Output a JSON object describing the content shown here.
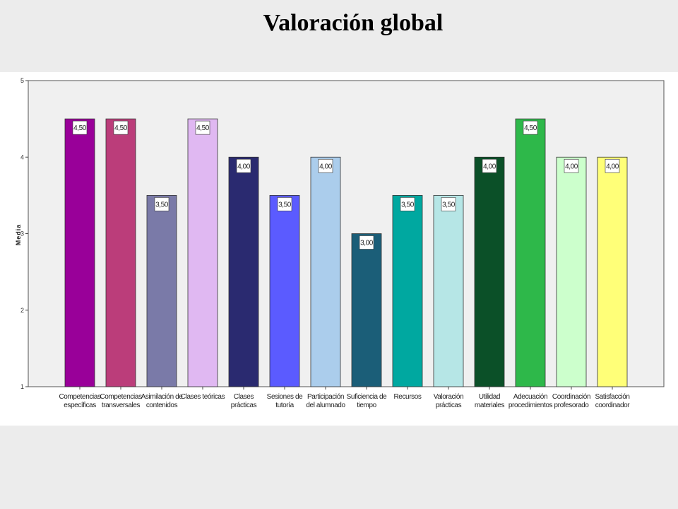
{
  "slide": {
    "title": "Valoración global"
  },
  "chart_data": {
    "type": "bar",
    "ylabel": "Media",
    "ylim": [
      1,
      5
    ],
    "yticks": [
      "1",
      "2",
      "3",
      "4",
      "5"
    ],
    "categories": [
      [
        "Competencias",
        "específicas"
      ],
      [
        "Competencias",
        "transversales"
      ],
      [
        "Asimilación de",
        "contenidos"
      ],
      [
        "Clases teóricas"
      ],
      [
        "Clases",
        "prácticas"
      ],
      [
        "Sesiones de",
        "tutoría"
      ],
      [
        "Participación",
        "del alumnado"
      ],
      [
        "Suficiencia de",
        "tiempo"
      ],
      [
        "Recursos"
      ],
      [
        "Valoración",
        "prácticas"
      ],
      [
        "Utilidad",
        "materiales"
      ],
      [
        "Adecuación",
        "procedimientos"
      ],
      [
        "Coordinación",
        "profesorado"
      ],
      [
        "Satisfacción",
        "coordinador"
      ]
    ],
    "values": [
      4.5,
      4.5,
      3.5,
      4.5,
      4.0,
      3.5,
      4.0,
      3.0,
      3.5,
      3.5,
      4.0,
      4.5,
      4.0,
      4.0
    ],
    "data_labels": [
      "4,50",
      "4,50",
      "3,50",
      "4,50",
      "4,00",
      "3,50",
      "4,00",
      "3,00",
      "3,50",
      "3,50",
      "4,00",
      "4,50",
      "4,00",
      "4,00"
    ],
    "colors": [
      "#990099",
      "#bb3d7a",
      "#7a7aa8",
      "#e0b8f2",
      "#2a2a70",
      "#5b5bff",
      "#abcdec",
      "#1b5e78",
      "#00a8a0",
      "#b6e6e6",
      "#0b5028",
      "#2eb84a",
      "#ccffcc",
      "#ffff78"
    ],
    "plot_background": "#f0f0f0"
  }
}
